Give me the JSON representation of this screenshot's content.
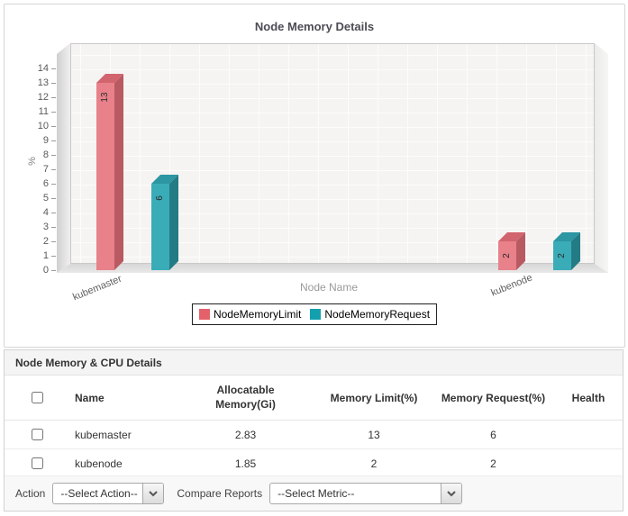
{
  "chart_data": {
    "type": "bar",
    "title": "Node Memory Details",
    "xlabel": "Node Name",
    "ylabel": "%",
    "ylim": [
      0,
      14
    ],
    "yticks": [
      0,
      1,
      2,
      3,
      4,
      5,
      6,
      7,
      8,
      9,
      10,
      11,
      12,
      13,
      14
    ],
    "categories": [
      "kubemaster",
      "kubenode"
    ],
    "series": [
      {
        "name": "NodeMemoryLimit",
        "values": [
          13,
          2
        ],
        "color": "#e4606a",
        "color_front": "#e8818a",
        "color_top": "#d2646d",
        "color_side": "#b95a62"
      },
      {
        "name": "NodeMemoryRequest",
        "values": [
          6,
          2
        ],
        "color": "#12a0ae",
        "color_front": "#3aacb8",
        "color_top": "#2c96a2",
        "color_side": "#237b85"
      }
    ],
    "legend_position": "bottom",
    "grid": true
  },
  "table": {
    "title": "Node Memory & CPU Details",
    "columns": [
      "Name",
      "Allocatable Memory(Gi)",
      "Memory Limit(%)",
      "Memory Request(%)",
      "Health"
    ],
    "rows": [
      {
        "name": "kubemaster",
        "allocatable_memory_gi": "2.83",
        "memory_limit_pct": "13",
        "memory_request_pct": "6",
        "health": "green"
      },
      {
        "name": "kubenode",
        "allocatable_memory_gi": "1.85",
        "memory_limit_pct": "2",
        "memory_request_pct": "2",
        "health": "green"
      }
    ]
  },
  "action_bar": {
    "action_label": "Action",
    "action_selected": "--Select Action--",
    "compare_label": "Compare Reports",
    "compare_selected": "--Select Metric--"
  },
  "colors": {
    "health_green": "#86c40e",
    "series_limit": "#e4606a",
    "series_request": "#12a0ae",
    "plot_background": "#f5f4f3"
  }
}
